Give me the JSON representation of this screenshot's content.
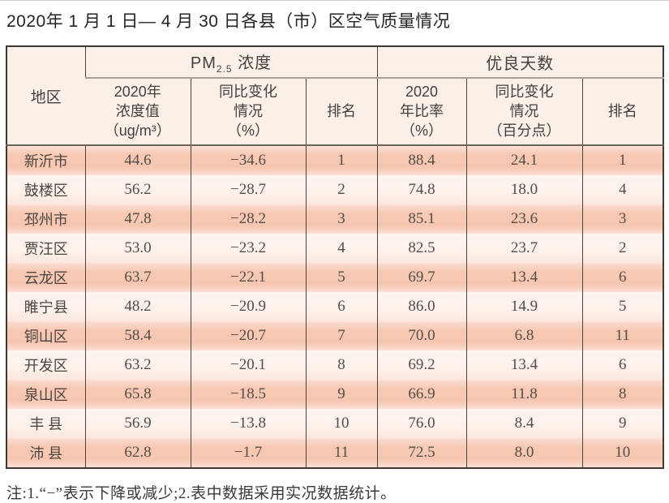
{
  "title": "2020年 1 月 1 日— 4 月 30 日各县（市）区空气质量情况",
  "note": "注:1.“−”表示下降或减少;2.表中数据采用实况数据统计。",
  "colors": {
    "stripe_dark": "#f6c6b1",
    "stripe_light": "#fdf1ea",
    "header_bg": "#fbf0e8",
    "border_dark": "#3e3833",
    "text": "#4c453e"
  },
  "chart_data": {
    "type": "table",
    "title": "2020年1月1日—4月30日各县（市）区空气质量情况",
    "column_groups": {
      "region": "地区",
      "pm25": {
        "prefix": "PM",
        "sub": "2.5",
        "suffix": " 浓度"
      },
      "good_days": "优良天数"
    },
    "columns": {
      "pm_value": "2020年\n浓度值\n（ug/m³）",
      "pm_change": "同比变化\n情况\n（%）",
      "pm_rank": "排名",
      "good_ratio": "2020\n年比率\n（%）",
      "good_change": "同比变化\n情况\n（百分点）",
      "good_rank": "排名"
    },
    "rows": [
      {
        "region": "新沂市",
        "pm_value": "44.6",
        "pm_change": "−34.6",
        "pm_rank": "1",
        "good_ratio": "88.4",
        "good_change": "24.1",
        "good_rank": "1"
      },
      {
        "region": "鼓楼区",
        "pm_value": "56.2",
        "pm_change": "−28.7",
        "pm_rank": "2",
        "good_ratio": "74.8",
        "good_change": "18.0",
        "good_rank": "4"
      },
      {
        "region": "邳州市",
        "pm_value": "47.8",
        "pm_change": "−28.2",
        "pm_rank": "3",
        "good_ratio": "85.1",
        "good_change": "23.6",
        "good_rank": "3"
      },
      {
        "region": "贾汪区",
        "pm_value": "53.0",
        "pm_change": "−23.2",
        "pm_rank": "4",
        "good_ratio": "82.5",
        "good_change": "23.7",
        "good_rank": "2"
      },
      {
        "region": "云龙区",
        "pm_value": "63.7",
        "pm_change": "−22.1",
        "pm_rank": "5",
        "good_ratio": "69.7",
        "good_change": "13.4",
        "good_rank": "6"
      },
      {
        "region": "睢宁县",
        "pm_value": "48.2",
        "pm_change": "−20.9",
        "pm_rank": "6",
        "good_ratio": "86.0",
        "good_change": "14.9",
        "good_rank": "5"
      },
      {
        "region": "铜山区",
        "pm_value": "58.4",
        "pm_change": "−20.7",
        "pm_rank": "7",
        "good_ratio": "70.0",
        "good_change": "6.8",
        "good_rank": "11"
      },
      {
        "region": "开发区",
        "pm_value": "63.2",
        "pm_change": "−20.1",
        "pm_rank": "8",
        "good_ratio": "69.2",
        "good_change": "13.4",
        "good_rank": "6"
      },
      {
        "region": "泉山区",
        "pm_value": "65.8",
        "pm_change": "−18.5",
        "pm_rank": "9",
        "good_ratio": "66.9",
        "good_change": "11.8",
        "good_rank": "8"
      },
      {
        "region": "丰 县",
        "pm_value": "56.9",
        "pm_change": "−13.8",
        "pm_rank": "10",
        "good_ratio": "76.0",
        "good_change": "8.4",
        "good_rank": "9"
      },
      {
        "region": "沛 县",
        "pm_value": "62.8",
        "pm_change": "−1.7",
        "pm_rank": "11",
        "good_ratio": "72.5",
        "good_change": "8.0",
        "good_rank": "10"
      }
    ]
  }
}
